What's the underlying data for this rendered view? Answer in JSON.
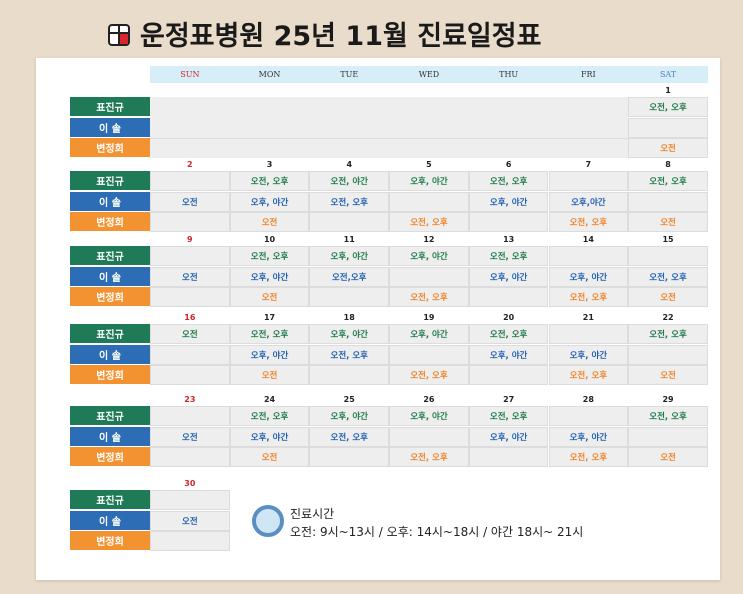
{
  "header": {
    "title": "운정표병원 25년 11월 진료일정표"
  },
  "days": [
    "SUN",
    "MON",
    "TUE",
    "WED",
    "THU",
    "FRI",
    "SAT"
  ],
  "doctors": [
    "표진규",
    "이 솔",
    "변정희"
  ],
  "weeks": [
    {
      "dates": [
        null,
        null,
        null,
        null,
        null,
        null,
        1
      ],
      "rows": [
        [
          null,
          null,
          null,
          null,
          null,
          null,
          "오전, 오후"
        ],
        [
          null,
          null,
          null,
          null,
          null,
          null,
          null
        ],
        [
          null,
          null,
          null,
          null,
          null,
          null,
          "오전"
        ]
      ]
    },
    {
      "dates": [
        2,
        3,
        4,
        5,
        6,
        7,
        8
      ],
      "rows": [
        [
          null,
          "오전, 오후",
          "오전, 야간",
          "오후, 야간",
          "오전, 오후",
          null,
          "오전, 오후"
        ],
        [
          "오전",
          "오후, 야간",
          "오전, 오후",
          null,
          "오후, 야간",
          "오후,야간",
          null
        ],
        [
          null,
          "오전",
          null,
          "오전, 오후",
          null,
          "오전, 오후",
          "오전"
        ]
      ]
    },
    {
      "dates": [
        9,
        10,
        11,
        12,
        13,
        14,
        15
      ],
      "rows": [
        [
          null,
          "오전, 오후",
          "오후, 야간",
          "오후, 야간",
          "오전, 오후",
          null,
          null
        ],
        [
          "오전",
          "오후, 야간",
          "오전,오후",
          null,
          "오후, 야간",
          "오후, 야간",
          "오전, 오후"
        ],
        [
          null,
          "오전",
          null,
          "오전, 오후",
          null,
          "오전, 오후",
          "오전"
        ]
      ]
    },
    {
      "dates": [
        16,
        17,
        18,
        19,
        20,
        21,
        22
      ],
      "rows": [
        [
          "오전",
          "오전, 오후",
          "오후, 야간",
          "오후, 야간",
          "오전, 오후",
          null,
          "오전, 오후"
        ],
        [
          null,
          "오후, 야간",
          "오전, 오후",
          null,
          "오후, 야간",
          "오후, 야간",
          null
        ],
        [
          null,
          "오전",
          null,
          "오전, 오후",
          null,
          "오전, 오후",
          "오전"
        ]
      ]
    },
    {
      "dates": [
        23,
        24,
        25,
        26,
        27,
        28,
        29
      ],
      "rows": [
        [
          null,
          "오전, 오후",
          "오후, 야간",
          "오후, 야간",
          "오전, 오후",
          null,
          "오전, 오후"
        ],
        [
          "오전",
          "오후, 야간",
          "오전, 오후",
          null,
          "오후, 야간",
          "오후, 야간",
          null
        ],
        [
          null,
          "오전",
          null,
          "오전, 오후",
          null,
          "오전, 오후",
          "오전"
        ]
      ]
    },
    {
      "dates": [
        30
      ],
      "rows": [
        [
          null
        ],
        [
          "오전"
        ],
        [
          null
        ]
      ]
    }
  ],
  "hours": {
    "title": "진료시간",
    "text": "오전:  9시~13시 / 오후: 14시~18시 / 야간 18시~ 21시"
  }
}
